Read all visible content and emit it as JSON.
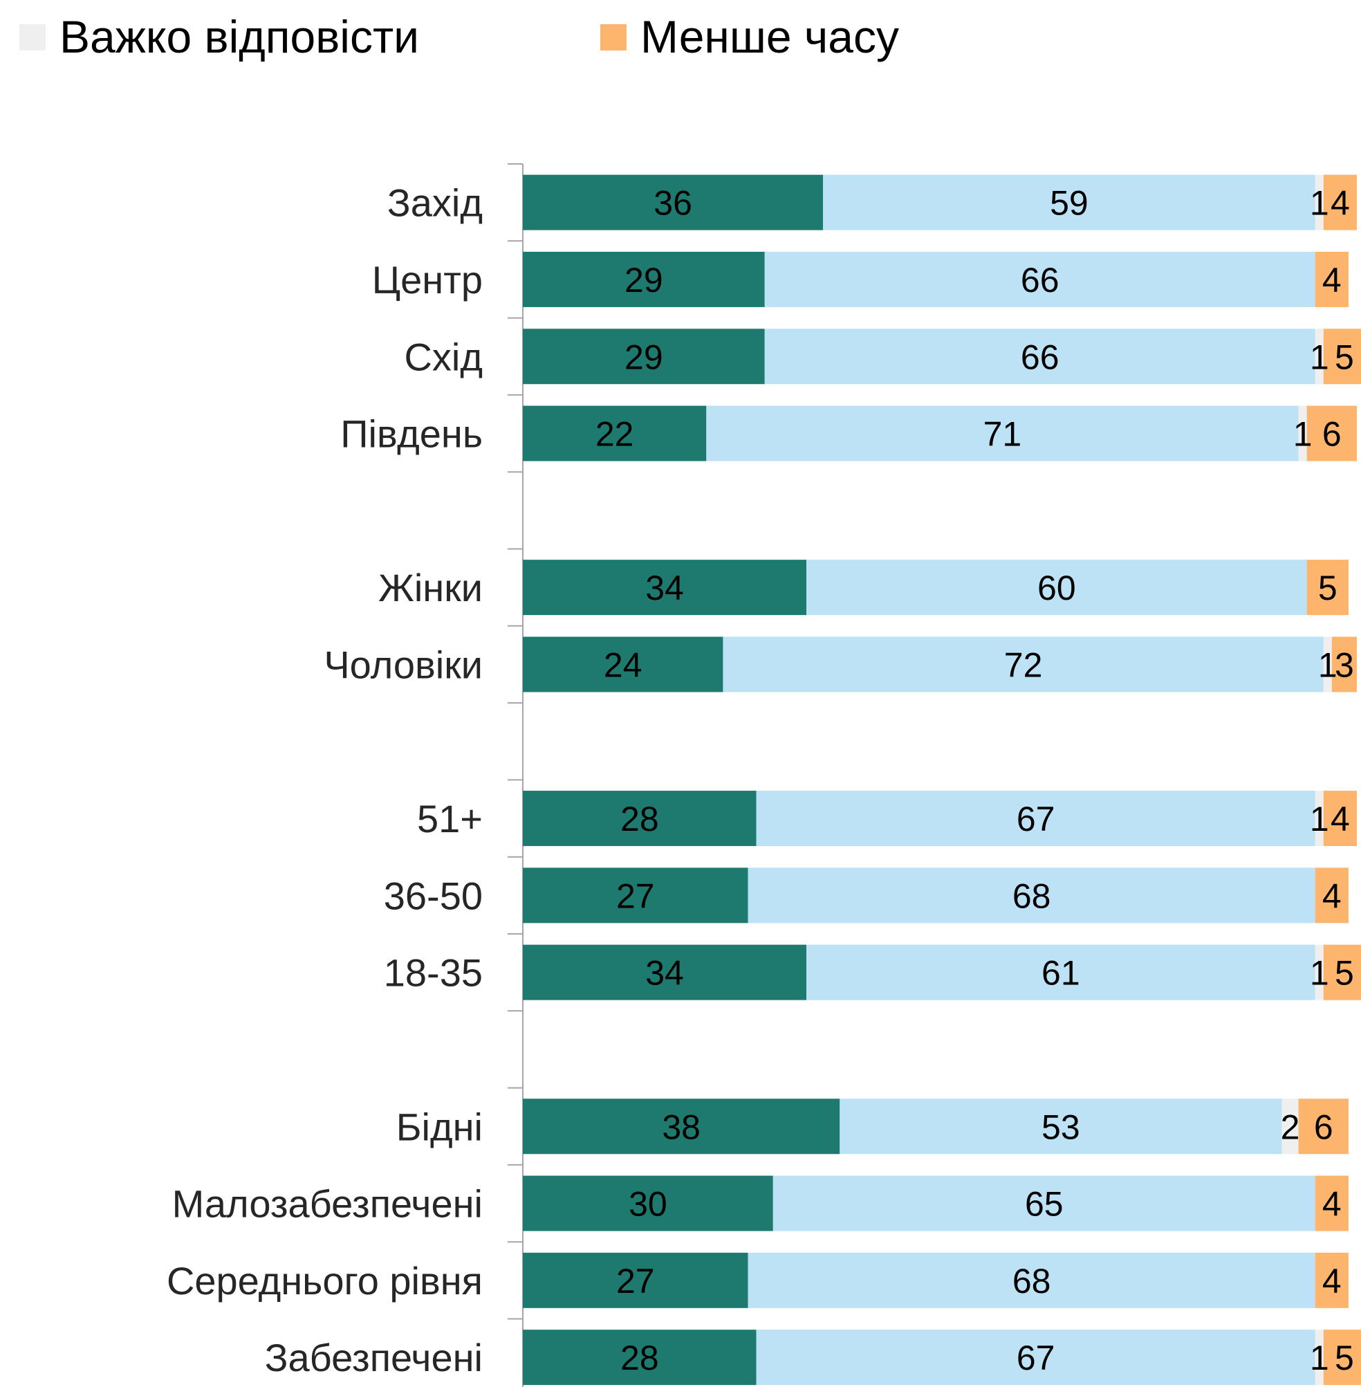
{
  "chart_data": {
    "type": "bar",
    "orientation": "horizontal",
    "stacked": true,
    "legend_position": "top",
    "grid": false,
    "xlim": [
      0,
      100
    ],
    "categories": [
      "Захід",
      "Центр",
      "Схід",
      "Південь",
      "Жінки",
      "Чоловіки",
      "51+",
      "36-50",
      "18-35",
      "Бідні",
      "Малозабезпечені",
      "Середнього рівня",
      "Забезпечені"
    ],
    "series": [
      {
        "color": "#1e7a6f",
        "values": [
          36,
          29,
          29,
          22,
          34,
          24,
          28,
          27,
          34,
          38,
          30,
          27,
          28
        ]
      },
      {
        "color": "#bde1f5",
        "values": [
          59,
          66,
          66,
          71,
          60,
          72,
          67,
          68,
          61,
          53,
          65,
          68,
          67
        ]
      },
      {
        "name": "Важко відповісти",
        "color": "#efefef",
        "values": [
          1,
          0,
          1,
          1,
          0,
          1,
          1,
          0,
          1,
          2,
          0,
          0,
          1
        ]
      },
      {
        "name": "Менше часу",
        "color": "#fdb46c",
        "values": [
          4,
          4,
          5,
          6,
          5,
          3,
          4,
          4,
          5,
          6,
          4,
          4,
          5
        ]
      }
    ],
    "data_labels": [
      [
        "36",
        "59",
        "1",
        "4"
      ],
      [
        "29",
        "66",
        "",
        "4"
      ],
      [
        "29",
        "66",
        "1",
        "5"
      ],
      [
        "22",
        "71",
        "1",
        "6"
      ],
      [
        "34",
        "60",
        "",
        "5"
      ],
      [
        "24",
        "72",
        "1",
        "3"
      ],
      [
        "28",
        "67",
        "1",
        "4"
      ],
      [
        "27",
        "68",
        "",
        "4"
      ],
      [
        "34",
        "61",
        "1",
        "5"
      ],
      [
        "38",
        "53",
        "2",
        "6"
      ],
      [
        "30",
        "65",
        "",
        "4"
      ],
      [
        "27",
        "68",
        "",
        "4"
      ],
      [
        "28",
        "67",
        "1",
        "5"
      ]
    ]
  }
}
